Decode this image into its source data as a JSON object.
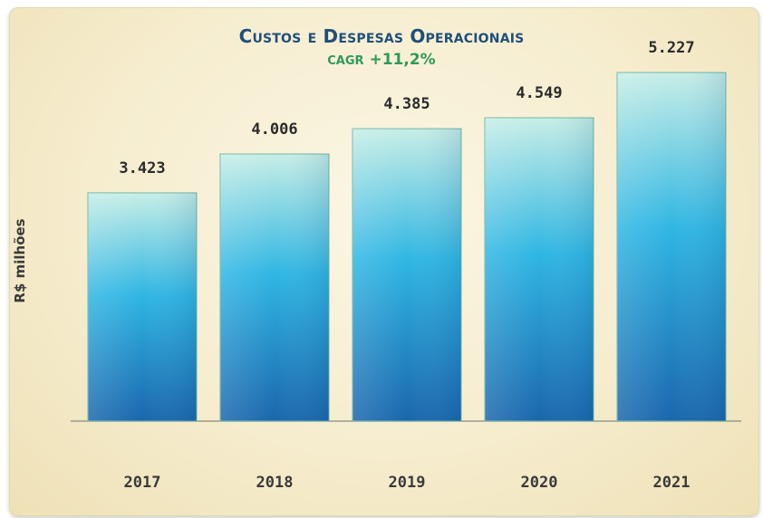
{
  "chart_data": {
    "type": "bar",
    "title": "Custos e Despesas Operacionais",
    "subtitle_prefix": "CAGR",
    "subtitle_value": "+11,2%",
    "ylabel": "R$ milhões",
    "xlabel": "",
    "categories": [
      "2017",
      "2018",
      "2019",
      "2020",
      "2021"
    ],
    "values": [
      3423,
      4006,
      4385,
      4549,
      5227
    ],
    "value_labels": [
      "3.423",
      "4.006",
      "4.385",
      "4.549",
      "5.227"
    ],
    "ylim": [
      0,
      5500
    ],
    "grid": false,
    "legend": "none"
  },
  "colors": {
    "bar_top": "#c7eee6",
    "bar_mid": "#2fb6e3",
    "bar_bottom": "#1a66ad",
    "title": "#1f4f7a",
    "subtitle": "#2f9a5a",
    "panel_bg": "#f6edcf"
  }
}
